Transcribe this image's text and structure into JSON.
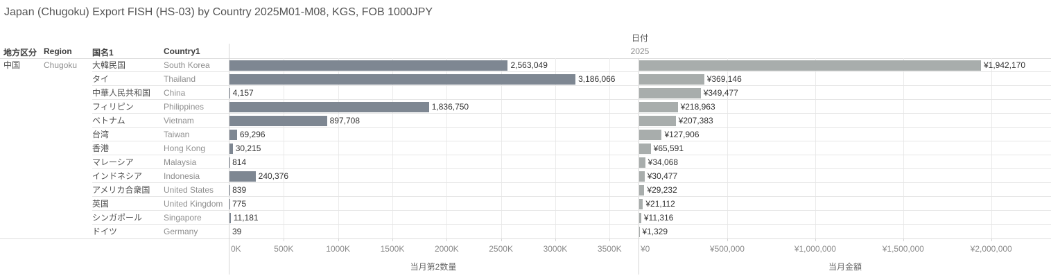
{
  "title": "Japan (Chugoku) Export FISH (HS-03) by Country 2025M01-M08, KGS, FOB 1000JPY",
  "date": {
    "field": "日付",
    "value": "2025"
  },
  "table": {
    "headers": {
      "region_jp": "地方区分",
      "region_en": "Region",
      "country_jp": "国名1",
      "country_en": "Country1"
    },
    "region": {
      "jp": "中国",
      "en": "Chugoku"
    }
  },
  "chart_data": {
    "type": "bar",
    "orientation": "horizontal",
    "grid": true,
    "rows": [
      {
        "country_jp": "大韓民国",
        "country_en": "South Korea",
        "qty": 2563049,
        "qty_label": "2,563,049",
        "amt": 1942170,
        "amt_label": "¥1,942,170"
      },
      {
        "country_jp": "タイ",
        "country_en": "Thailand",
        "qty": 3186066,
        "qty_label": "3,186,066",
        "amt": 369146,
        "amt_label": "¥369,146"
      },
      {
        "country_jp": "中華人民共和国",
        "country_en": "China",
        "qty": 4157,
        "qty_label": "4,157",
        "amt": 349477,
        "amt_label": "¥349,477"
      },
      {
        "country_jp": "フィリピン",
        "country_en": "Philippines",
        "qty": 1836750,
        "qty_label": "1,836,750",
        "amt": 218963,
        "amt_label": "¥218,963"
      },
      {
        "country_jp": "ベトナム",
        "country_en": "Vietnam",
        "qty": 897708,
        "qty_label": "897,708",
        "amt": 207383,
        "amt_label": "¥207,383"
      },
      {
        "country_jp": "台湾",
        "country_en": "Taiwan",
        "qty": 69296,
        "qty_label": "69,296",
        "amt": 127906,
        "amt_label": "¥127,906"
      },
      {
        "country_jp": "香港",
        "country_en": "Hong Kong",
        "qty": 30215,
        "qty_label": "30,215",
        "amt": 65591,
        "amt_label": "¥65,591"
      },
      {
        "country_jp": "マレーシア",
        "country_en": "Malaysia",
        "qty": 814,
        "qty_label": "814",
        "amt": 34068,
        "amt_label": "¥34,068"
      },
      {
        "country_jp": "インドネシア",
        "country_en": "Indonesia",
        "qty": 240376,
        "qty_label": "240,376",
        "amt": 30477,
        "amt_label": "¥30,477"
      },
      {
        "country_jp": "アメリカ合衆国",
        "country_en": "United States",
        "qty": 839,
        "qty_label": "839",
        "amt": 29232,
        "amt_label": "¥29,232"
      },
      {
        "country_jp": "英国",
        "country_en": "United Kingdom",
        "qty": 775,
        "qty_label": "775",
        "amt": 21112,
        "amt_label": "¥21,112"
      },
      {
        "country_jp": "シンガポール",
        "country_en": "Singapore",
        "qty": 11181,
        "qty_label": "11,181",
        "amt": 11316,
        "amt_label": "¥11,316"
      },
      {
        "country_jp": "ドイツ",
        "country_en": "Germany",
        "qty": 39,
        "qty_label": "39",
        "amt": 1329,
        "amt_label": "¥1,329"
      }
    ],
    "qty_axis": {
      "title": "当月第2数量",
      "ticks": [
        "0K",
        "500K",
        "1000K",
        "1500K",
        "2000K",
        "2500K",
        "3000K",
        "3500K"
      ],
      "tick_values": [
        0,
        500000,
        1000000,
        1500000,
        2000000,
        2500000,
        3000000,
        3500000
      ],
      "max": 3760000
    },
    "amt_axis": {
      "title": "当月金額",
      "ticks": [
        "¥0",
        "¥500,000",
        "¥1,000,000",
        "¥1,500,000",
        "¥2,000,000"
      ],
      "tick_values": [
        0,
        500000,
        1000000,
        1500000,
        2000000
      ],
      "max": 2340000
    },
    "colors": {
      "qty_bar": "#7e8792",
      "amt_bar": "#a8adac"
    }
  }
}
